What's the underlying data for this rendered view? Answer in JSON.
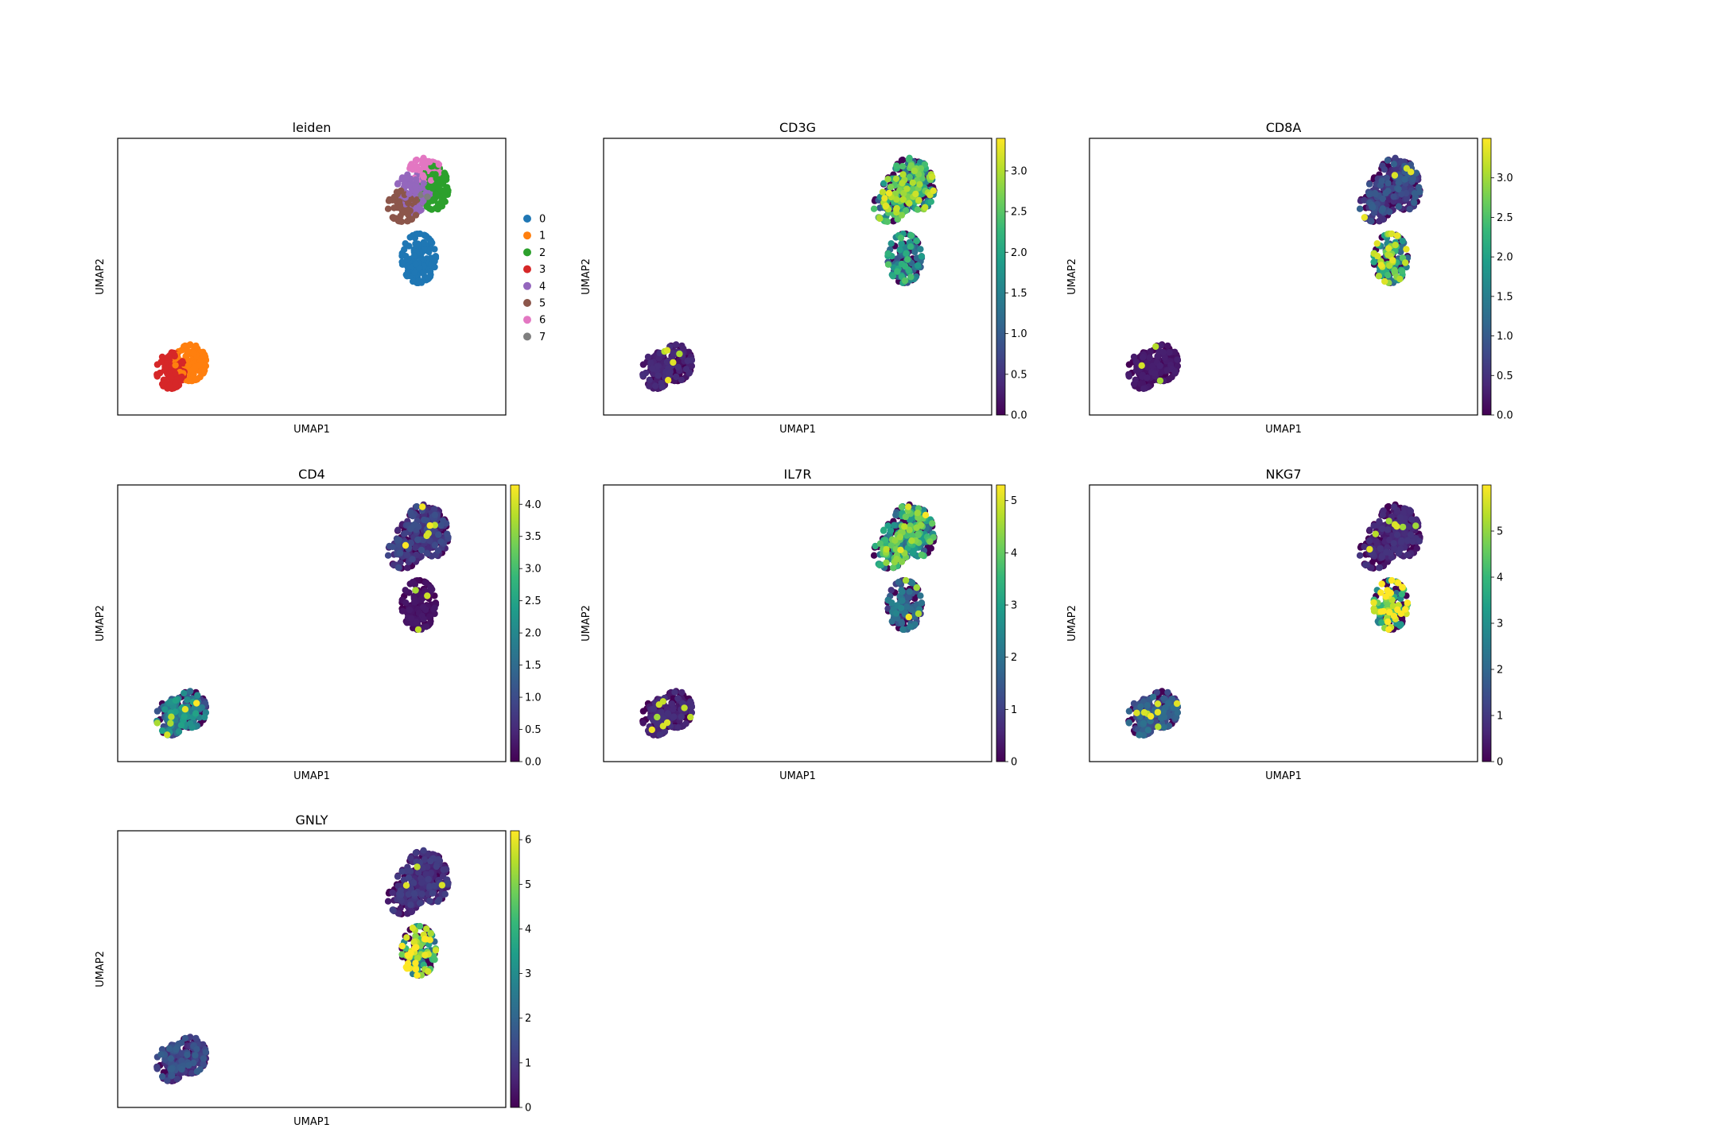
{
  "figure": {
    "colors": {
      "leiden": [
        "#1f77b4",
        "#ff7f0e",
        "#2ca02c",
        "#d62728",
        "#9467bd",
        "#8c564b",
        "#e377c2",
        "#7f7f7f"
      ],
      "viridis": [
        "#440154",
        "#482878",
        "#3e4989",
        "#31688e",
        "#26828e",
        "#1f9e89",
        "#35b779",
        "#6ece58",
        "#b5de2b",
        "#fde725"
      ]
    }
  },
  "chart_data": [
    {
      "type": "scatter",
      "title": "leiden",
      "xlabel": "UMAP1",
      "ylabel": "UMAP2",
      "color_by": "categorical",
      "legend": {
        "placement": "right",
        "entries": [
          "0",
          "1",
          "2",
          "3",
          "4",
          "5",
          "6",
          "7"
        ]
      },
      "clusters": [
        {
          "label": "0",
          "center": [
            8.7,
            5.2
          ],
          "spread": [
            0.55,
            0.95
          ],
          "n": 140
        },
        {
          "label": "1",
          "center": [
            1.35,
            1.2
          ],
          "spread": [
            0.5,
            0.7
          ],
          "n": 120
        },
        {
          "label": "2",
          "center": [
            9.2,
            7.9
          ],
          "spread": [
            0.45,
            0.85
          ],
          "n": 110
        },
        {
          "label": "3",
          "center": [
            0.7,
            0.9
          ],
          "spread": [
            0.45,
            0.7
          ],
          "n": 110
        },
        {
          "label": "4",
          "center": [
            8.5,
            7.7
          ],
          "spread": [
            0.55,
            0.75
          ],
          "n": 90
        },
        {
          "label": "5",
          "center": [
            8.2,
            7.2
          ],
          "spread": [
            0.5,
            0.6
          ],
          "n": 70
        },
        {
          "label": "6",
          "center": [
            8.9,
            8.6
          ],
          "spread": [
            0.5,
            0.45
          ],
          "n": 50
        },
        {
          "label": "7",
          "center": [
            8.8,
            7.6
          ],
          "spread": [
            0.3,
            0.3
          ],
          "n": 4
        }
      ]
    },
    {
      "type": "scatter",
      "title": "CD3G",
      "xlabel": "UMAP1",
      "ylabel": "UMAP2",
      "color_by": "expression",
      "colorbar": {
        "min": 0.0,
        "max": 3.4,
        "ticks": [
          "0.0",
          "0.5",
          "1.0",
          "1.5",
          "2.0",
          "2.5",
          "3.0"
        ]
      },
      "typical_expression": {
        "bottom_left_group": 0.3,
        "top_right_group": 2.0,
        "lower_right_group": 1.6
      }
    },
    {
      "type": "scatter",
      "title": "CD8A",
      "xlabel": "UMAP1",
      "ylabel": "UMAP2",
      "color_by": "expression",
      "colorbar": {
        "min": 0.0,
        "max": 3.5,
        "ticks": [
          "0.0",
          "0.5",
          "1.0",
          "1.5",
          "2.0",
          "2.5",
          "3.0"
        ]
      },
      "typical_expression": {
        "bottom_left_group": 0.2,
        "top_right_group": 0.7,
        "lower_right_group": 2.2
      }
    },
    {
      "type": "scatter",
      "title": "CD4",
      "xlabel": "UMAP1",
      "ylabel": "UMAP2",
      "color_by": "expression",
      "colorbar": {
        "min": 0.0,
        "max": 4.3,
        "ticks": [
          "0.0",
          "0.5",
          "1.0",
          "1.5",
          "2.0",
          "2.5",
          "3.0",
          "3.5",
          "4.0"
        ]
      },
      "typical_expression": {
        "bottom_left_group": 1.6,
        "top_right_group": 0.7,
        "lower_right_group": 0.2
      }
    },
    {
      "type": "scatter",
      "title": "IL7R",
      "xlabel": "UMAP1",
      "ylabel": "UMAP2",
      "color_by": "expression",
      "colorbar": {
        "min": 0,
        "max": 5.3,
        "ticks": [
          "0",
          "1",
          "2",
          "3",
          "4",
          "5"
        ]
      },
      "typical_expression": {
        "bottom_left_group": 0.5,
        "top_right_group": 3.0,
        "lower_right_group": 1.6
      }
    },
    {
      "type": "scatter",
      "title": "NKG7",
      "xlabel": "UMAP1",
      "ylabel": "UMAP2",
      "color_by": "expression",
      "colorbar": {
        "min": 0,
        "max": 6.0,
        "ticks": [
          "0",
          "1",
          "2",
          "3",
          "4",
          "5"
        ]
      },
      "typical_expression": {
        "bottom_left_group": 1.5,
        "top_right_group": 0.6,
        "lower_right_group": 4.5
      }
    },
    {
      "type": "scatter",
      "title": "GNLY",
      "xlabel": "UMAP1",
      "ylabel": "UMAP2",
      "color_by": "expression",
      "colorbar": {
        "min": 0,
        "max": 6.2,
        "ticks": [
          "0",
          "1",
          "2",
          "3",
          "4",
          "5",
          "6"
        ]
      },
      "typical_expression": {
        "bottom_left_group": 1.2,
        "top_right_group": 0.8,
        "lower_right_group": 4.4
      }
    }
  ]
}
